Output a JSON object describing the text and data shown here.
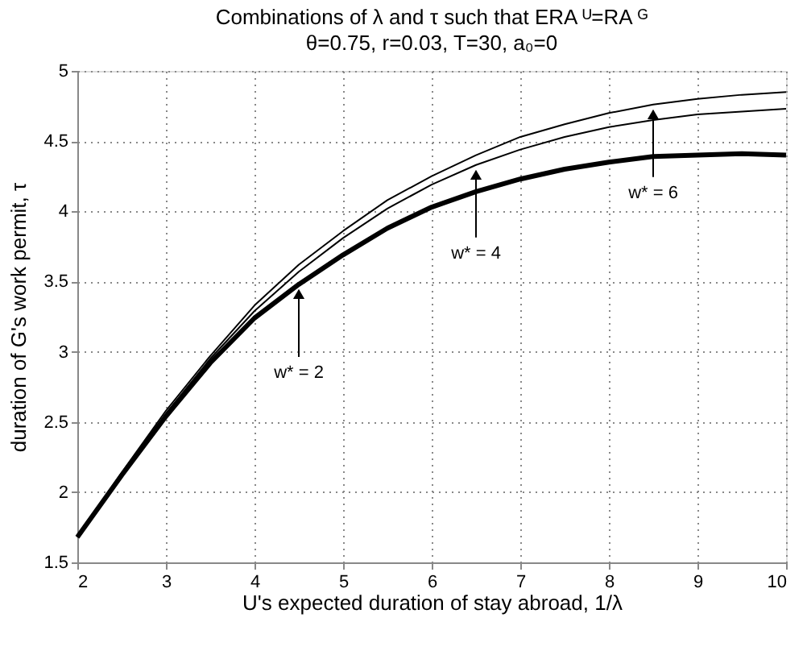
{
  "chart_data": {
    "type": "line",
    "title": "Combinations of λ and τ such that ERA ᵁ=RA ᴳ",
    "subtitle": "θ=0.75, r=0.03, T=30, a₀=0",
    "xlabel": "U's expected duration of stay abroad, 1/λ",
    "ylabel": "duration of G's work permit, τ",
    "x": [
      2,
      2.5,
      3,
      3.5,
      4,
      4.5,
      5,
      5.5,
      6,
      6.5,
      7,
      7.5,
      8,
      8.5,
      9,
      9.5,
      10
    ],
    "series": [
      {
        "color": "#000000",
        "values": [
          1.68,
          2.12,
          2.54,
          2.92,
          3.24,
          3.48,
          3.69,
          3.88,
          4.03,
          4.14,
          4.23,
          4.3,
          4.35,
          4.39,
          4.4,
          4.41,
          4.4
        ]
      },
      {
        "color": "#000000",
        "values": [
          1.68,
          2.13,
          2.56,
          2.95,
          3.29,
          3.57,
          3.81,
          4.02,
          4.19,
          4.33,
          4.44,
          4.53,
          4.6,
          4.65,
          4.69,
          4.71,
          4.73
        ]
      },
      {
        "color": "#000000",
        "values": [
          1.68,
          2.14,
          2.58,
          2.97,
          3.33,
          3.62,
          3.86,
          4.08,
          4.25,
          4.4,
          4.53,
          4.62,
          4.7,
          4.76,
          4.8,
          4.83,
          4.85
        ]
      }
    ],
    "annotations": [
      {
        "text": "w* = 2",
        "x": 4.5,
        "y": 3.48
      },
      {
        "text": "w* = 4",
        "x": 6.5,
        "y": 4.33
      },
      {
        "text": "w* = 6",
        "x": 8.5,
        "y": 4.76
      }
    ],
    "xlim": [
      2,
      10
    ],
    "ylim": [
      1.5,
      5
    ],
    "xticks": [
      2,
      3,
      4,
      5,
      6,
      7,
      8,
      9,
      10
    ],
    "yticks": [
      1.5,
      2,
      2.5,
      3,
      3.5,
      4,
      4.5,
      5
    ],
    "grid": true,
    "legend": false,
    "marker": "none",
    "line_style": "solid"
  }
}
